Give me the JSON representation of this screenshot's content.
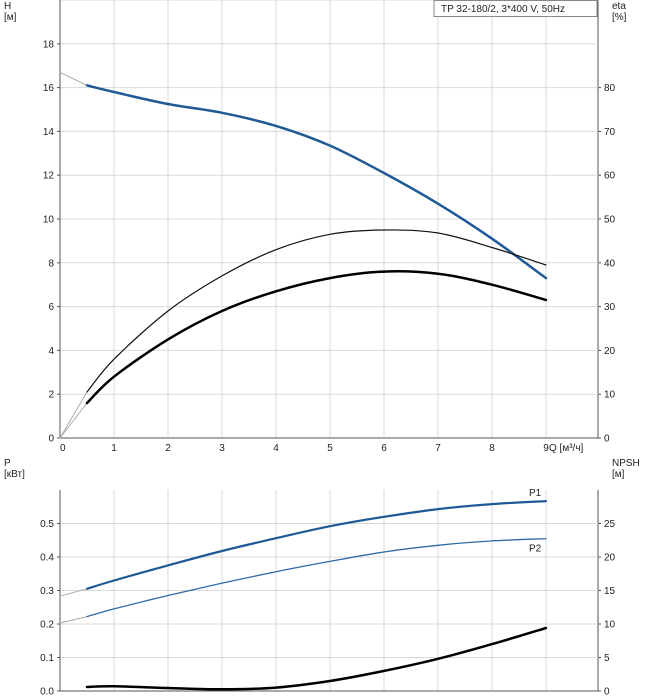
{
  "chart_data": [
    {
      "type": "line",
      "title": "TP 32-180/2, 3*400 V, 50Hz",
      "xlabel": "Q [м³/ч]",
      "ylabel_left": "H",
      "ylabel_left_unit": "[м]",
      "ylabel_right": "eta",
      "ylabel_right_unit": "[%]",
      "xlim": [
        0,
        9.2
      ],
      "ylim_left": [
        0,
        20
      ],
      "ylim_right": [
        0,
        100
      ],
      "xticks": [
        "0",
        "1",
        "2",
        "3",
        "4",
        "5",
        "6",
        "7",
        "8",
        "9"
      ],
      "yticks_left": [
        "0",
        "2",
        "4",
        "6",
        "8",
        "10",
        "12",
        "14",
        "16",
        "18"
      ],
      "yticks_right": [
        "0",
        "10",
        "20",
        "30",
        "40",
        "50",
        "60",
        "70",
        "80"
      ],
      "grid": true,
      "series": [
        {
          "axis": "left",
          "color": "#aaaaaa",
          "width": 1,
          "x": [
            0,
            0.5
          ],
          "y": [
            16.7,
            16.1
          ]
        },
        {
          "axis": "left",
          "color": "#1f5a96",
          "width": 2.5,
          "x": [
            0.5,
            1,
            2,
            3,
            4,
            5,
            6,
            7,
            8,
            9
          ],
          "y": [
            16.1,
            15.8,
            15.25,
            14.85,
            14.25,
            13.35,
            12.1,
            10.7,
            9.1,
            7.3
          ]
        },
        {
          "axis": "right",
          "color": "#aaaaaa",
          "width": 1,
          "x": [
            0,
            0.5
          ],
          "y": [
            0,
            10.5
          ]
        },
        {
          "axis": "right",
          "color": "#111111",
          "width": 1.2,
          "x": [
            0.5,
            1,
            2,
            3,
            4,
            5,
            6,
            7,
            8,
            9
          ],
          "y": [
            10.5,
            18,
            29,
            37,
            43,
            46.5,
            47.5,
            46.8,
            43.5,
            39.5
          ]
        },
        {
          "axis": "right",
          "color": "#aaaaaa",
          "width": 1,
          "x": [
            0,
            0.5
          ],
          "y": [
            0,
            8
          ]
        },
        {
          "axis": "right",
          "color": "#000000",
          "width": 2.5,
          "x": [
            0.5,
            1,
            2,
            3,
            4,
            5,
            6,
            7,
            8,
            9
          ],
          "y": [
            8,
            14,
            22.5,
            29,
            33.5,
            36.5,
            38,
            37.5,
            35,
            31.5
          ]
        }
      ]
    },
    {
      "type": "line",
      "xlabel": "",
      "ylabel_left": "P",
      "ylabel_left_unit": "[кВт]",
      "ylabel_right": "NPSH",
      "ylabel_right_unit": "[м]",
      "xlim": [
        0,
        9.2
      ],
      "ylim_left": [
        0,
        0.6
      ],
      "ylim_right": [
        0,
        30
      ],
      "yticks_left": [
        "0.0",
        "0.1",
        "0.2",
        "0.3",
        "0.4",
        "0.5"
      ],
      "yticks_right": [
        "0",
        "5",
        "10",
        "15",
        "20",
        "25"
      ],
      "grid": true,
      "series": [
        {
          "axis": "left",
          "color": "#aaaaaa",
          "width": 1,
          "x": [
            0,
            0.5
          ],
          "y": [
            0.283,
            0.305
          ]
        },
        {
          "name": "P1",
          "axis": "left",
          "color": "#1f5a96",
          "width": 2.2,
          "x": [
            0.5,
            1,
            2,
            3,
            4,
            5,
            6,
            7,
            8,
            9
          ],
          "y": [
            0.305,
            0.33,
            0.375,
            0.418,
            0.456,
            0.492,
            0.52,
            0.543,
            0.558,
            0.567
          ]
        },
        {
          "axis": "left",
          "color": "#aaaaaa",
          "width": 1,
          "x": [
            0,
            0.5
          ],
          "y": [
            0.203,
            0.222
          ]
        },
        {
          "name": "P2",
          "axis": "left",
          "color": "#2e6aa5",
          "width": 1.3,
          "x": [
            0.5,
            1,
            2,
            3,
            4,
            5,
            6,
            7,
            8,
            9
          ],
          "y": [
            0.222,
            0.245,
            0.285,
            0.322,
            0.356,
            0.387,
            0.415,
            0.435,
            0.448,
            0.455
          ]
        },
        {
          "axis": "right",
          "color": "#000000",
          "width": 2.5,
          "x": [
            0.5,
            1,
            2,
            3,
            4,
            5,
            6,
            7,
            8,
            9
          ],
          "y": [
            0.6,
            0.7,
            0.45,
            0.25,
            0.5,
            1.5,
            3,
            4.8,
            7,
            9.4
          ]
        }
      ]
    }
  ]
}
